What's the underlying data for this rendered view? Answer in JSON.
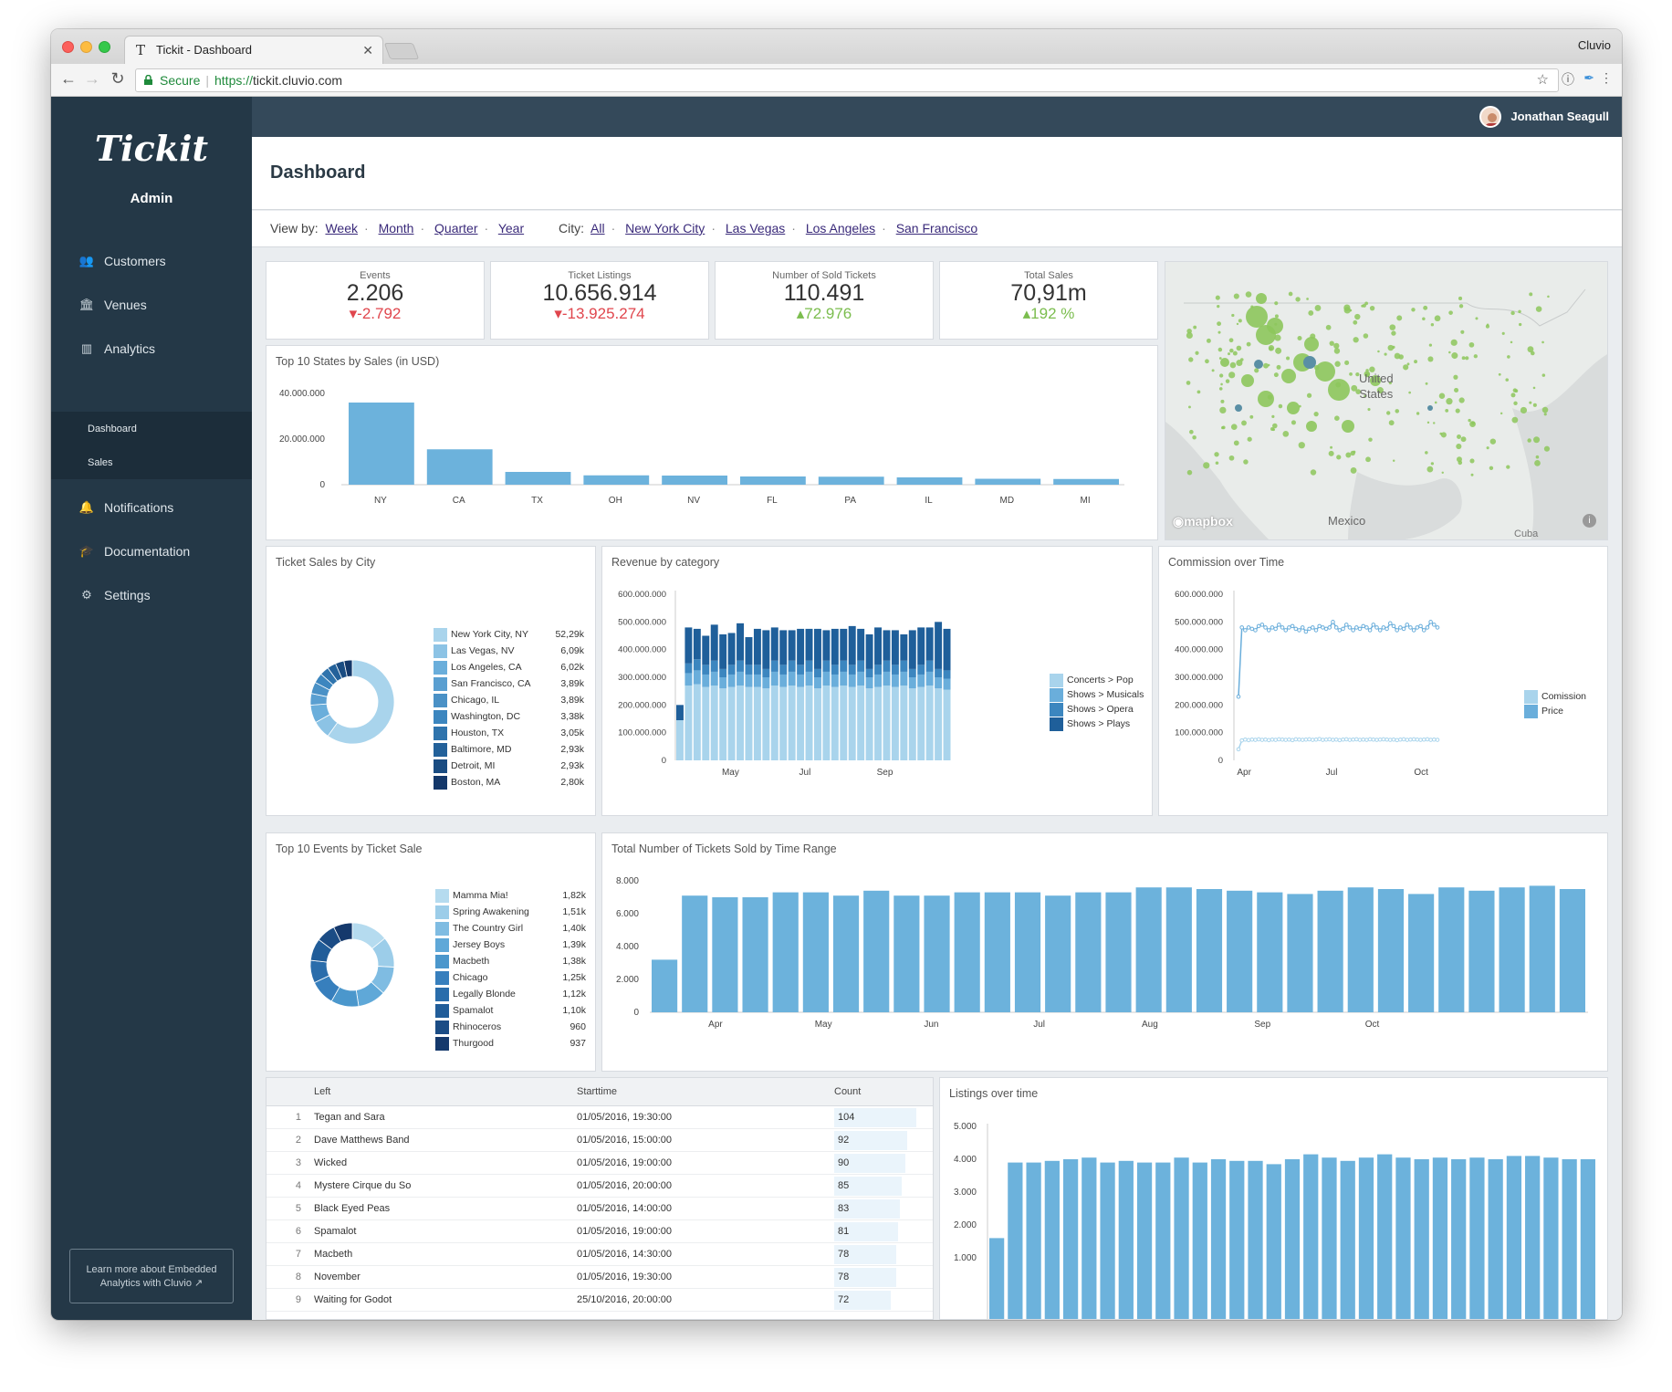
{
  "browser": {
    "tab_title": "Tickit - Dashboard",
    "profile": "Cluvio",
    "secure": "Secure",
    "url_scheme": "https://",
    "url_host": "tickit.cluvio.com"
  },
  "sidebar": {
    "logo": "Tickit",
    "role": "Admin",
    "items": [
      {
        "label": "Customers",
        "icon": "users-icon"
      },
      {
        "label": "Venues",
        "icon": "bank-icon"
      },
      {
        "label": "Analytics",
        "icon": "bar-chart-icon"
      },
      {
        "label": "Notifications",
        "icon": "bell-icon"
      },
      {
        "label": "Documentation",
        "icon": "graduation-cap-icon"
      },
      {
        "label": "Settings",
        "icon": "gears-icon"
      }
    ],
    "subitems": [
      {
        "label": "Dashboard"
      },
      {
        "label": "Sales"
      }
    ],
    "learn_more": "Learn more about Embedded Analytics with Cluvio"
  },
  "topbar": {
    "user": "Jonathan Seagull"
  },
  "page": {
    "title": "Dashboard"
  },
  "filters": {
    "view_label": "View by:",
    "view_options": [
      "Week",
      "Month",
      "Quarter",
      "Year"
    ],
    "city_label": "City:",
    "city_options": [
      "All",
      "New York City",
      "Las Vegas",
      "Los Angeles",
      "San Francisco"
    ]
  },
  "kpis": [
    {
      "label": "Events",
      "value": "2.206",
      "delta": "-2.792",
      "dir": "down"
    },
    {
      "label": "Ticket Listings",
      "value": "10.656.914",
      "delta": "-13.925.274",
      "dir": "down"
    },
    {
      "label": "Number of Sold Tickets",
      "value": "110.491",
      "delta": "72.976",
      "dir": "up"
    },
    {
      "label": "Total Sales",
      "value": "70,91m",
      "delta": "192 %",
      "dir": "up"
    }
  ],
  "map": {
    "label1": "United",
    "label2": "States",
    "label3": "Mexico",
    "label4": "Cuba",
    "brand": "mapbox",
    "accent": "#8dc75c"
  },
  "colors": {
    "bar": "#6cb2dc",
    "c1": "#a9d4ec",
    "c2": "#6aaedb",
    "c3": "#3c86bf",
    "c4": "#1f5f9a",
    "neg": "#e0464d",
    "pos": "#7bbd4e"
  },
  "chart_data": [
    {
      "id": "states",
      "type": "bar",
      "title": "Top 10 States by Sales (in USD)",
      "categories": [
        "NY",
        "CA",
        "TX",
        "OH",
        "NV",
        "FL",
        "PA",
        "IL",
        "MD",
        "MI"
      ],
      "values": [
        36000000,
        15500000,
        5600000,
        4100000,
        4000000,
        3600000,
        3500000,
        3200000,
        2600000,
        2500000
      ],
      "ylim": [
        0,
        40000000
      ],
      "yticks": [
        "0",
        "20.000.000",
        "40.000.000"
      ]
    },
    {
      "id": "city",
      "type": "pie",
      "title": "Ticket Sales by City",
      "labels": [
        "New York City, NY",
        "Las Vegas, NV",
        "Los Angeles, CA",
        "San Francisco, CA",
        "Chicago, IL",
        "Washington, DC",
        "Houston, TX",
        "Baltimore, MD",
        "Detroit, MI",
        "Boston, MA"
      ],
      "display": [
        "52,29k",
        "6,09k",
        "6,02k",
        "3,89k",
        "3,89k",
        "3,38k",
        "3,05k",
        "2,93k",
        "2,93k",
        "2,80k"
      ],
      "values": [
        52290,
        6090,
        6020,
        3890,
        3890,
        3380,
        3050,
        2930,
        2930,
        2800
      ]
    },
    {
      "id": "revenue",
      "type": "bar",
      "title": "Revenue by category",
      "stacked": true,
      "xlabels": [
        "May",
        "Jul",
        "Sep"
      ],
      "ylim": [
        0,
        600000000
      ],
      "yticks": [
        "0",
        "100.000.000",
        "200.000.000",
        "300.000.000",
        "400.000.000",
        "500.000.000",
        "600.000.000"
      ],
      "series": [
        {
          "name": "Concerts > Pop",
          "values": [
            145,
            270,
            275,
            265,
            270,
            260,
            265,
            270,
            265,
            265,
            260,
            270,
            265,
            270,
            265,
            270,
            260,
            270,
            265,
            270,
            265,
            270,
            260,
            265,
            270,
            265,
            270,
            260,
            265,
            270,
            260,
            255
          ]
        },
        {
          "name": "Shows > Musicals",
          "values": [
            0,
            45,
            50,
            45,
            50,
            40,
            45,
            50,
            45,
            45,
            40,
            50,
            45,
            50,
            45,
            50,
            40,
            50,
            45,
            50,
            45,
            50,
            40,
            45,
            50,
            45,
            50,
            40,
            45,
            50,
            40,
            40
          ]
        },
        {
          "name": "Shows > Opera",
          "values": [
            0,
            35,
            40,
            35,
            40,
            30,
            35,
            40,
            35,
            35,
            30,
            40,
            35,
            40,
            35,
            40,
            30,
            40,
            35,
            40,
            35,
            40,
            30,
            35,
            40,
            35,
            40,
            30,
            35,
            40,
            30,
            30
          ]
        },
        {
          "name": "Shows > Plays",
          "values": [
            55,
            130,
            110,
            105,
            130,
            125,
            115,
            135,
            100,
            130,
            140,
            120,
            125,
            110,
            130,
            115,
            145,
            110,
            130,
            115,
            140,
            115,
            125,
            135,
            110,
            125,
            95,
            140,
            135,
            120,
            170,
            150
          ]
        }
      ]
    },
    {
      "id": "commission",
      "type": "line",
      "title": "Commission over Time",
      "xlabels": [
        "Apr",
        "Jul",
        "Oct"
      ],
      "ylim": [
        0,
        600000000
      ],
      "yticks": [
        "0",
        "100.000.000",
        "200.000.000",
        "300.000.000",
        "400.000.000",
        "500.000.000",
        "600.000.000"
      ],
      "series": [
        {
          "name": "Comission",
          "values": [
            40,
            72,
            75,
            73,
            75,
            74,
            76,
            74,
            75,
            73,
            75,
            74,
            76,
            75,
            74,
            75,
            73,
            76,
            75,
            74,
            75,
            76,
            74,
            75,
            77,
            74,
            75,
            76,
            74,
            75,
            73,
            75,
            76,
            74,
            75,
            76,
            74,
            75,
            74,
            76,
            75,
            74,
            75,
            76,
            75,
            74,
            75,
            73,
            75,
            76,
            74,
            75,
            76,
            75,
            74,
            75,
            76,
            74,
            75,
            74
          ]
        },
        {
          "name": "Price",
          "values": [
            230,
            480,
            470,
            480,
            475,
            470,
            485,
            490,
            480,
            470,
            480,
            475,
            490,
            480,
            470,
            480,
            485,
            475,
            470,
            480,
            465,
            475,
            480,
            470,
            485,
            480,
            475,
            480,
            500,
            480,
            470,
            475,
            490,
            480,
            470,
            480,
            475,
            485,
            480,
            470,
            490,
            480,
            470,
            480,
            475,
            495,
            485,
            470,
            480,
            475,
            490,
            480,
            470,
            480,
            485,
            470,
            480,
            500,
            490,
            480
          ]
        }
      ]
    },
    {
      "id": "events",
      "type": "pie",
      "title": "Top 10 Events by Ticket Sale",
      "labels": [
        "Mamma Mia!",
        "Spring Awakening",
        "The Country Girl",
        "Jersey Boys",
        "Macbeth",
        "Chicago",
        "Legally Blonde",
        "Spamalot",
        "Rhinoceros",
        "Thurgood"
      ],
      "display": [
        "1,82k",
        "1,51k",
        "1,40k",
        "1,39k",
        "1,38k",
        "1,25k",
        "1,12k",
        "1,10k",
        "960",
        "937"
      ],
      "values": [
        1820,
        1510,
        1400,
        1390,
        1380,
        1250,
        1120,
        1100,
        960,
        937
      ]
    },
    {
      "id": "timerange",
      "type": "bar",
      "title": "Total Number of Tickets Sold by Time Range",
      "xlabels": [
        "Apr",
        "May",
        "Jun",
        "Jul",
        "Aug",
        "Sep",
        "Oct"
      ],
      "ylim": [
        0,
        8000
      ],
      "yticks": [
        "0",
        "2.000",
        "4.000",
        "6.000",
        "8.000"
      ],
      "values": [
        3200,
        7100,
        7000,
        7000,
        7300,
        7300,
        7100,
        7400,
        7100,
        7100,
        7300,
        7300,
        7300,
        7100,
        7300,
        7300,
        7600,
        7600,
        7500,
        7400,
        7300,
        7200,
        7400,
        7600,
        7500,
        7200,
        7600,
        7400,
        7600,
        7700,
        7500
      ]
    },
    {
      "id": "listings",
      "type": "bar",
      "title": "Listings over time",
      "ylim": [
        0,
        5000
      ],
      "yticks": [
        "1.000",
        "2.000",
        "3.000",
        "4.000",
        "5.000"
      ],
      "values": [
        1600,
        3900,
        3900,
        3950,
        4000,
        4050,
        3900,
        3950,
        3900,
        3900,
        4050,
        3900,
        4000,
        3950,
        3950,
        3850,
        4000,
        4150,
        4050,
        3950,
        4050,
        4150,
        4050,
        4000,
        4050,
        4000,
        4050,
        4000,
        4100,
        4100,
        4050,
        4000,
        4000
      ]
    },
    {
      "id": "table",
      "type": "table",
      "columns": [
        "Left",
        "Starttime",
        "Count"
      ],
      "rows": [
        [
          "1",
          "Tegan and Sara",
          "01/05/2016, 19:30:00",
          "104"
        ],
        [
          "2",
          "Dave Matthews Band",
          "01/05/2016, 15:00:00",
          "92"
        ],
        [
          "3",
          "Wicked",
          "01/05/2016, 19:00:00",
          "90"
        ],
        [
          "4",
          "Mystere Cirque du So",
          "01/05/2016, 20:00:00",
          "85"
        ],
        [
          "5",
          "Black Eyed Peas",
          "01/05/2016, 14:00:00",
          "83"
        ],
        [
          "6",
          "Spamalot",
          "01/05/2016, 19:00:00",
          "81"
        ],
        [
          "7",
          "Macbeth",
          "01/05/2016, 14:30:00",
          "78"
        ],
        [
          "8",
          "November",
          "01/05/2016, 19:30:00",
          "78"
        ],
        [
          "9",
          "Waiting for Godot",
          "25/10/2016, 20:00:00",
          "72"
        ]
      ]
    }
  ]
}
